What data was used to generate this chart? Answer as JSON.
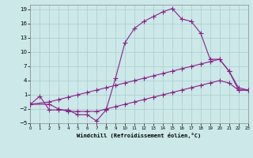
{
  "background_color": "#cce8e8",
  "grid_color": "#aacccc",
  "line_color": "#882288",
  "xlim": [
    0,
    23
  ],
  "ylim": [
    -5,
    20
  ],
  "xticks": [
    0,
    1,
    2,
    3,
    4,
    5,
    6,
    7,
    8,
    9,
    10,
    11,
    12,
    13,
    14,
    15,
    16,
    17,
    18,
    19,
    20,
    21,
    22,
    23
  ],
  "yticks": [
    -5,
    -2,
    1,
    4,
    7,
    10,
    13,
    16,
    19
  ],
  "xlabel": "Windchill (Refroidissement éolien,°C)",
  "line1_x": [
    0,
    1,
    2,
    3,
    4,
    5,
    6,
    7,
    8,
    9,
    10,
    11,
    12,
    13,
    14,
    15,
    16,
    17,
    18,
    19,
    20,
    21,
    22,
    23
  ],
  "line1_y": [
    -1,
    0.7,
    -2.2,
    -2.2,
    -2.2,
    -3.2,
    -3.2,
    -4.5,
    -2.2,
    4.5,
    12,
    15,
    16.5,
    17.5,
    18.5,
    19.2,
    17,
    16.5,
    14,
    8.5,
    8.5,
    6,
    2,
    2
  ],
  "line2_x": [
    0,
    2,
    3,
    4,
    5,
    6,
    7,
    8,
    9,
    10,
    11,
    12,
    13,
    14,
    15,
    16,
    17,
    18,
    19,
    20,
    21,
    22,
    23
  ],
  "line2_y": [
    -1,
    -0.5,
    0,
    0.5,
    1,
    1.5,
    2,
    2.5,
    3,
    3.5,
    4,
    4.5,
    5,
    5.5,
    6,
    6.5,
    7,
    7.5,
    8,
    8.5,
    6,
    2.5,
    2
  ],
  "line3_x": [
    0,
    2,
    3,
    4,
    5,
    6,
    7,
    8,
    9,
    10,
    11,
    12,
    13,
    14,
    15,
    16,
    17,
    18,
    19,
    20,
    21,
    22,
    23
  ],
  "line3_y": [
    -1,
    -1,
    -2,
    -2.5,
    -2.5,
    -2.5,
    -2.5,
    -2,
    -1.5,
    -1,
    -0.5,
    0,
    0.5,
    1,
    1.5,
    2,
    2.5,
    3,
    3.5,
    4,
    3.5,
    2,
    2
  ]
}
